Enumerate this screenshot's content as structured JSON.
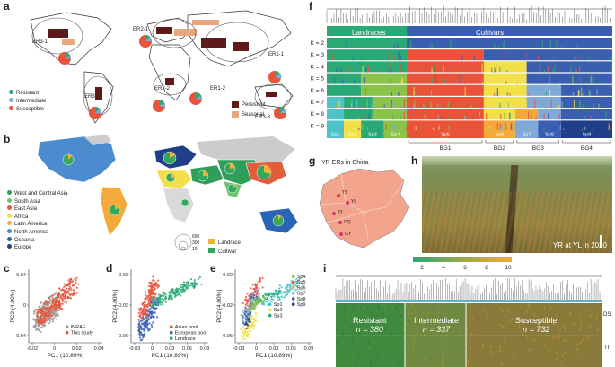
{
  "panels": {
    "a": {
      "label": "a",
      "regions": [
        "ER3-1",
        "ER2-1",
        "ER1-1",
        "ER3-2",
        "ER2-2",
        "ER1-2",
        "ER3-3"
      ],
      "legend": [
        {
          "name": "Resistant",
          "color": "#2aa876"
        },
        {
          "name": "Intermediate",
          "color": "#7fa9d8"
        },
        {
          "name": "Susceptible",
          "color": "#e8533a"
        }
      ],
      "map_legend": [
        {
          "name": "Persistent",
          "color": "#5c1a1a"
        },
        {
          "name": "Seasonal",
          "color": "#e9a77f"
        }
      ]
    },
    "b": {
      "label": "b",
      "legend": [
        {
          "name": "West and Central Asia",
          "color": "#2f9e5a"
        },
        {
          "name": "South Asia",
          "color": "#6cc36c"
        },
        {
          "name": "East Asia",
          "color": "#e25d3c"
        },
        {
          "name": "Africa",
          "color": "#f2e04a"
        },
        {
          "name": "Latin America",
          "color": "#f4a93a"
        },
        {
          "name": "North America",
          "color": "#4d8bcf"
        },
        {
          "name": "Oceania",
          "color": "#2a64b5"
        },
        {
          "name": "Europe",
          "color": "#1f3f88"
        }
      ],
      "size_legend": [
        "650",
        "300",
        "10"
      ],
      "pie_legend": [
        {
          "name": "Landrace",
          "color": "#f2b23a"
        },
        {
          "name": "Cultivar",
          "color": "#32a85e"
        }
      ]
    },
    "c": {
      "label": "c",
      "xlabel": "PC1 (10.89%)",
      "ylabel": "PC2 (4.00%)",
      "xticks": [
        "-0.02",
        "0",
        "0.02",
        "0.04"
      ],
      "yticks": [
        "0.04",
        "0",
        "-0.04"
      ],
      "legend": [
        {
          "name": "INRAE",
          "color": "#9a9a9a"
        },
        {
          "name": "This study",
          "color": "#e8533a"
        }
      ]
    },
    "d": {
      "label": "d",
      "xlabel": "PC1 (10.89%)",
      "ylabel": "PC2 (4.00%)",
      "xticks": [
        "-0.03",
        "0",
        "0.03",
        "0.06",
        "0.09"
      ],
      "yticks": [
        "0.02",
        "-0.02",
        "-0.06"
      ],
      "legend": [
        {
          "name": "Asian pool",
          "color": "#e8533a"
        },
        {
          "name": "European pool",
          "color": "#3b5fb0"
        },
        {
          "name": "Landrace",
          "color": "#2aa876"
        }
      ]
    },
    "e": {
      "label": "e",
      "xlabel": "PC1 (10.89%)",
      "ylabel": "PC2 (4.00%)",
      "xticks": [
        "-0.03",
        "0",
        "0.03",
        "0.06",
        "0.09"
      ],
      "yticks": [
        "0.02",
        "-0.02",
        "-0.06"
      ],
      "legend": [
        {
          "name": "Sp1",
          "color": "#4cc3c8"
        },
        {
          "name": "Sp2",
          "color": "#f2e04a"
        },
        {
          "name": "Sp3",
          "color": "#2aa876"
        },
        {
          "name": "Sp4",
          "color": "#8bc34a"
        },
        {
          "name": "Sp5",
          "color": "#e8533a"
        },
        {
          "name": "Sp6",
          "color": "#f4a93a"
        },
        {
          "name": "Sp7",
          "color": "#7fa9d8"
        },
        {
          "name": "Sp8",
          "color": "#3b5fb0"
        },
        {
          "name": "Sp9",
          "color": "#1f3f88"
        }
      ]
    },
    "f": {
      "label": "f",
      "header_left": "Landraces",
      "header_right": "Cultivars",
      "k_labels": [
        "K = 2",
        "K = 3",
        "K = 4",
        "K = 5",
        "K = 6",
        "K = 7",
        "K = 8",
        "K = 9"
      ],
      "sp_labels": [
        "Sp1",
        "Sp2",
        "Sp3",
        "Sp4",
        "Sp5",
        "Sp6",
        "Sp7",
        "Sp8",
        "Sp9"
      ],
      "bg_labels": [
        "BG1",
        "BG2",
        "BG3",
        "BG4"
      ]
    },
    "g": {
      "label": "g",
      "title": "YR ERs in China",
      "sites": [
        "TS",
        "YL",
        "JY",
        "CQ",
        "GY"
      ]
    },
    "h": {
      "label": "h",
      "caption": "YR at YL in 2020"
    },
    "i": {
      "label": "i",
      "scale_ticks": [
        "2",
        "4",
        "6",
        "8",
        "10"
      ],
      "groups": [
        {
          "name": "Resistant",
          "n": "n = 380"
        },
        {
          "name": "Intermediate",
          "n": "n = 337"
        },
        {
          "name": "Susceptible",
          "n": "n = 732"
        }
      ],
      "row_labels": [
        "DS",
        "IT"
      ]
    }
  }
}
